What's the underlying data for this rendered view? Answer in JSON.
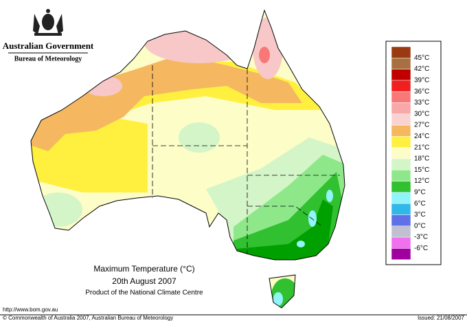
{
  "header": {
    "agency": "Australian Government",
    "bureau": "Bureau of Meteorology"
  },
  "map": {
    "title": "Maximum Temperature (°C)",
    "date": "20th August 2007",
    "product": "Product of the National Climate Centre"
  },
  "legend": {
    "labels": [
      "45°C",
      "42°C",
      "39°C",
      "36°C",
      "33°C",
      "30°C",
      "27°C",
      "24°C",
      "21°C",
      "18°C",
      "15°C",
      "12°C",
      "9°C",
      "6°C",
      "3°C",
      "0°C",
      "-3°C",
      "-6°C"
    ],
    "colors": [
      "#9a3a12",
      "#a87040",
      "#c00000",
      "#f02020",
      "#f87878",
      "#f8a8a8",
      "#fad2d2",
      "#f5b860",
      "#fff040",
      "#fdfdc8",
      "#d4f5c8",
      "#8ee88a",
      "#30c030",
      "#90f4f8",
      "#30b8e8",
      "#6070e8",
      "#c0c0d0",
      "#f070f0",
      "#a000a0"
    ]
  },
  "footer": {
    "url": "http://www.bom.gov.au",
    "copyright": "© Commonwealth of Australia 2007, Australian Bureau of Meteorology",
    "issued": "Issued: 21/08/2007"
  }
}
